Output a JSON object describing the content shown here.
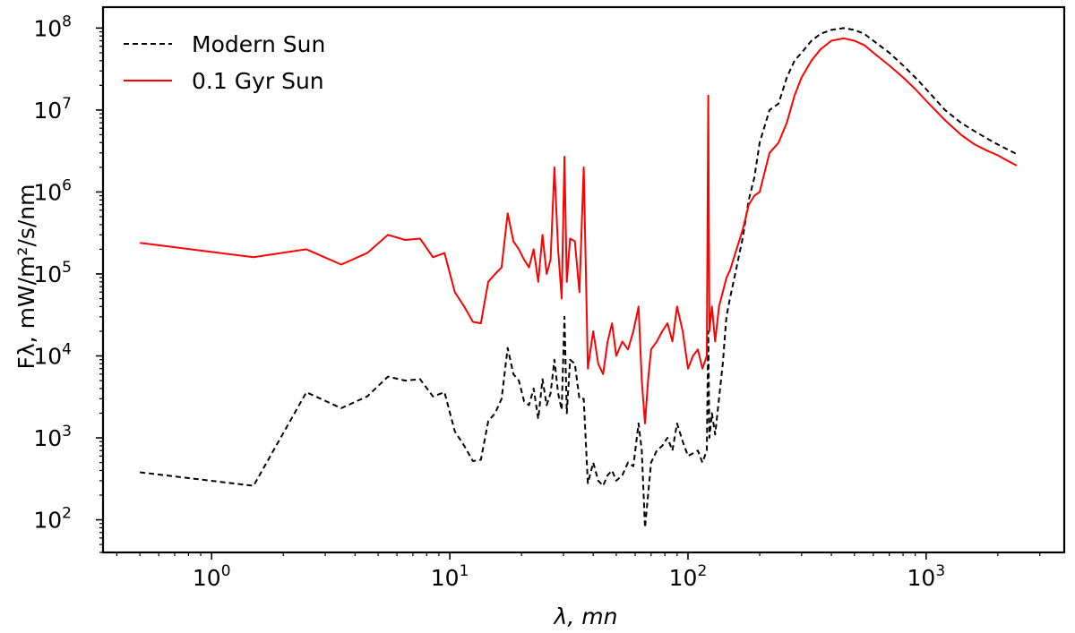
{
  "chart_data": {
    "type": "line",
    "title": "",
    "xlabel": "λ, mn",
    "ylabel": "Fλ, mW/m²/s/nm",
    "xscale": "log",
    "yscale": "log",
    "xlim": [
      0.35,
      3800
    ],
    "ylim": [
      40,
      180000000
    ],
    "grid": false,
    "legend_position": "top-left",
    "x_ticks": [
      {
        "value": 1,
        "base": "10",
        "exp": "0"
      },
      {
        "value": 10,
        "base": "10",
        "exp": "1"
      },
      {
        "value": 100,
        "base": "10",
        "exp": "2"
      },
      {
        "value": 1000,
        "base": "10",
        "exp": "3"
      }
    ],
    "y_ticks": [
      {
        "value": 100,
        "base": "10",
        "exp": "2"
      },
      {
        "value": 1000,
        "base": "10",
        "exp": "3"
      },
      {
        "value": 10000,
        "base": "10",
        "exp": "4"
      },
      {
        "value": 100000,
        "base": "10",
        "exp": "5"
      },
      {
        "value": 1000000,
        "base": "10",
        "exp": "6"
      },
      {
        "value": 10000000,
        "base": "10",
        "exp": "7"
      },
      {
        "value": 100000000,
        "base": "10",
        "exp": "8"
      }
    ],
    "series": [
      {
        "name": "Modern Sun",
        "color": "#000000",
        "linestyle": "dashed",
        "x": [
          0.5,
          1.5,
          2.5,
          3.5,
          4.5,
          5.5,
          6.5,
          7.5,
          8.5,
          9.5,
          10.5,
          11.5,
          12.5,
          13.5,
          14.5,
          15.5,
          16.5,
          17.5,
          18.5,
          19.5,
          20.5,
          21.5,
          22.5,
          23.5,
          24.5,
          25.5,
          26.5,
          27.5,
          28.5,
          29.5,
          30.3,
          31,
          32,
          33.5,
          35,
          36.5,
          38,
          40,
          42,
          44,
          46,
          48,
          50,
          53,
          56,
          59,
          62,
          64,
          66,
          68,
          70,
          74,
          78,
          82,
          86,
          90,
          95,
          100,
          105,
          110,
          115,
          120,
          121.6,
          123,
          126,
          130,
          135,
          140,
          145,
          150,
          160,
          170,
          180,
          190,
          200,
          220,
          240,
          260,
          280,
          300,
          330,
          360,
          400,
          450,
          500,
          550,
          600,
          700,
          800,
          900,
          1000,
          1200,
          1400,
          1600,
          1800,
          2000,
          2200,
          2400
        ],
        "y": [
          380,
          260,
          3600,
          2300,
          3200,
          5600,
          5000,
          5200,
          3200,
          3600,
          1200,
          800,
          520,
          540,
          1600,
          2000,
          3000,
          12500,
          6000,
          5000,
          2800,
          2500,
          4000,
          1700,
          5200,
          2500,
          3500,
          9000,
          3500,
          2200,
          30000,
          2000,
          9000,
          8000,
          3000,
          3000,
          280,
          500,
          300,
          260,
          350,
          400,
          300,
          350,
          500,
          450,
          1500,
          700,
          80,
          200,
          500,
          700,
          800,
          1000,
          700,
          1500,
          900,
          600,
          650,
          700,
          500,
          700,
          20000,
          1000,
          2000,
          1100,
          3000,
          8000,
          30000,
          50000,
          120000,
          280000,
          800000,
          1500000,
          4000000,
          10000000,
          12000000,
          25000000,
          40000000,
          50000000,
          70000000,
          85000000,
          95000000,
          100000000,
          95000000,
          85000000,
          70000000,
          50000000,
          35000000,
          25000000,
          18000000,
          10000000,
          7000000,
          5500000,
          4500000,
          3800000,
          3300000,
          2900000
        ]
      },
      {
        "name": "0.1 Gyr Sun",
        "color": "#ff0000",
        "linestyle": "solid",
        "x": [
          0.5,
          1.5,
          2.5,
          3.5,
          4.5,
          5.5,
          6.5,
          7.5,
          8.5,
          9.5,
          10.5,
          11.5,
          12.5,
          13.5,
          14.5,
          15.5,
          16.5,
          17.5,
          18.5,
          19.5,
          20.5,
          21.5,
          22.5,
          23.5,
          24.5,
          25.5,
          26.5,
          27.5,
          28.5,
          29.5,
          30.3,
          31,
          32,
          33.5,
          35,
          36.5,
          38,
          40,
          42,
          44,
          46,
          48,
          50,
          53,
          56,
          59,
          62,
          64,
          66,
          68,
          70,
          74,
          78,
          82,
          86,
          90,
          95,
          100,
          105,
          110,
          115,
          120,
          121.6,
          123,
          126,
          130,
          135,
          140,
          145,
          150,
          160,
          170,
          180,
          190,
          200,
          220,
          240,
          260,
          280,
          300,
          330,
          360,
          400,
          450,
          500,
          550,
          600,
          700,
          800,
          900,
          1000,
          1200,
          1400,
          1600,
          1800,
          2000,
          2200,
          2400
        ],
        "y": [
          240000,
          160000,
          200000,
          130000,
          180000,
          300000,
          260000,
          270000,
          160000,
          180000,
          60000,
          40000,
          26000,
          25000,
          80000,
          100000,
          120000,
          550000,
          250000,
          200000,
          150000,
          120000,
          200000,
          80000,
          300000,
          100000,
          150000,
          2000000,
          200000,
          50000,
          2700000,
          80000,
          270000,
          250000,
          60000,
          2000000,
          7000,
          20000,
          8000,
          6000,
          15000,
          25000,
          10000,
          15000,
          12000,
          20000,
          40000,
          5000,
          1500,
          5000,
          12000,
          15000,
          20000,
          25000,
          15000,
          40000,
          20000,
          7000,
          10000,
          12000,
          7000,
          10000,
          15000000,
          20000,
          40000,
          15000,
          40000,
          60000,
          90000,
          110000,
          200000,
          350000,
          700000,
          900000,
          1000000,
          3000000,
          4000000,
          7000000,
          15000000,
          25000000,
          40000000,
          55000000,
          70000000,
          75000000,
          70000000,
          62000000,
          50000000,
          35000000,
          25000000,
          18000000,
          13000000,
          7500000,
          5000000,
          3800000,
          3200000,
          2800000,
          2400000,
          2100000
        ]
      }
    ]
  }
}
